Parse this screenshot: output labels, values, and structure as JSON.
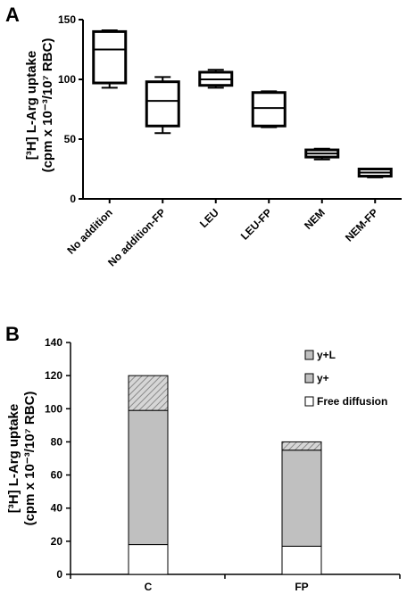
{
  "chart_data": [
    {
      "panel": "A",
      "type": "box",
      "ylabel_line1": "[³H] L-Arg uptake",
      "ylabel_line2": "(cpm x 10⁻³/10⁷ RBC)",
      "ylim": [
        0,
        150
      ],
      "yticks": [
        0,
        50,
        100,
        150
      ],
      "categories": [
        "No addition",
        "No addition-FP",
        "LEU",
        "LEU-FP",
        "NEM",
        "NEM-FP"
      ],
      "boxes": [
        {
          "min": 93,
          "q1": 97,
          "median": 125,
          "q3": 140,
          "max": 141
        },
        {
          "min": 55,
          "q1": 61,
          "median": 82,
          "q3": 98,
          "max": 102
        },
        {
          "min": 93,
          "q1": 95,
          "median": 100,
          "q3": 106,
          "max": 108
        },
        {
          "min": 60,
          "q1": 61,
          "median": 76,
          "q3": 89,
          "max": 90
        },
        {
          "min": 33,
          "q1": 35,
          "median": 38,
          "q3": 41,
          "max": 42
        },
        {
          "min": 18,
          "q1": 19,
          "median": 22,
          "q3": 25,
          "max": 25
        }
      ],
      "grid": false
    },
    {
      "panel": "B",
      "type": "bar",
      "stacked": true,
      "ylabel_line1": "[³H] L-Arg uptake",
      "ylabel_line2": "(cpm x 10⁻³/10⁷ RBC)",
      "ylim": [
        0,
        140
      ],
      "yticks": [
        0,
        20,
        40,
        60,
        80,
        100,
        120,
        140
      ],
      "categories": [
        "C",
        "FP"
      ],
      "series": [
        {
          "name": "Free diffusion",
          "values": [
            18,
            17
          ],
          "color": "#ffffff",
          "pattern": "none"
        },
        {
          "name": "y+",
          "values": [
            81,
            58
          ],
          "color": "#c0c0c0",
          "pattern": "none"
        },
        {
          "name": "y+L",
          "values": [
            21,
            5
          ],
          "color": "#c0c0c0",
          "pattern": "hatch"
        }
      ],
      "legend_position": "top-right",
      "grid": false
    }
  ]
}
